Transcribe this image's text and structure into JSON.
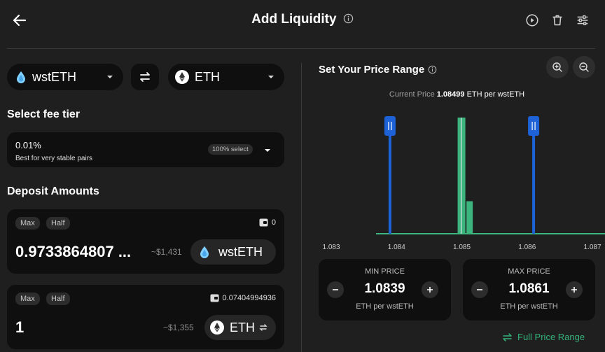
{
  "header": {
    "title": "Add Liquidity"
  },
  "pair": {
    "token0": {
      "symbol": "wstETH",
      "icon": "wsteth-icon"
    },
    "token1": {
      "symbol": "ETH",
      "icon": "eth-icon"
    }
  },
  "fee": {
    "section_label": "Select fee tier",
    "percent": "0.01%",
    "description": "Best for very stable pairs",
    "badge": "100% select"
  },
  "deposit": {
    "section_label": "Deposit Amounts",
    "max_label": "Max",
    "half_label": "Half",
    "rows": [
      {
        "amount": "0.9733864807 ...",
        "usd": "~$1,431",
        "balance": "0",
        "symbol": "wstETH"
      },
      {
        "amount": "1",
        "usd": "~$1,355",
        "balance": "0.07404994936",
        "symbol": "ETH"
      }
    ]
  },
  "range": {
    "title": "Set Your Price Range",
    "current_price_label": "Current Price",
    "current_price_value": "1.08499",
    "current_price_unit": "ETH per wstETH",
    "min": {
      "label": "MIN PRICE",
      "value": "1.0839",
      "unit": "ETH per wstETH"
    },
    "max": {
      "label": "MAX PRICE",
      "value": "1.0861",
      "unit": "ETH per wstETH"
    },
    "full_range_label": "Full Price Range"
  },
  "chart_data": {
    "type": "bar",
    "x_ticks": [
      "1.083",
      "1.084",
      "1.085",
      "1.086",
      "1.087"
    ],
    "xlim": [
      1.083,
      1.087
    ],
    "current_price": 1.08499,
    "range_min": 1.0839,
    "range_max": 1.0861,
    "bars": [
      {
        "x": 1.08499,
        "value": 100
      },
      {
        "x": 1.08505,
        "value": 28
      }
    ],
    "colors": {
      "liquidity": "#3bb47e",
      "range_handle": "#1d62d6"
    }
  },
  "colors": {
    "accent_green": "#34b27a",
    "handle_blue": "#1d62d6"
  }
}
